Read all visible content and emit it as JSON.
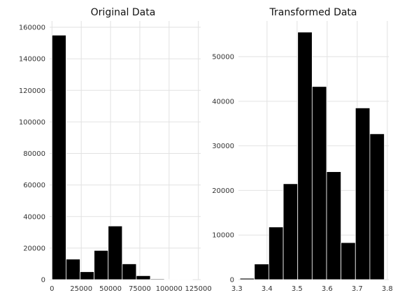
{
  "chart_data": [
    {
      "type": "bar",
      "title": "Original Data",
      "xlabel": "",
      "ylabel": "",
      "xlim": [
        -2000,
        127000
      ],
      "ylim": [
        0,
        164000
      ],
      "xticks": [
        0,
        25000,
        50000,
        75000,
        100000,
        125000
      ],
      "xtick_labels": [
        "0",
        "25000",
        "50000",
        "75000",
        "100000",
        "125000"
      ],
      "yticks": [
        0,
        20000,
        40000,
        60000,
        80000,
        100000,
        120000,
        140000,
        160000
      ],
      "ytick_labels": [
        "0",
        "20000",
        "40000",
        "60000",
        "80000",
        "100000",
        "120000",
        "140000",
        "160000"
      ],
      "grid": true,
      "color": "#000000",
      "bins": [
        {
          "x0": 0,
          "x1": 12000,
          "count": 155000
        },
        {
          "x0": 12000,
          "x1": 24000,
          "count": 13000
        },
        {
          "x0": 24000,
          "x1": 36000,
          "count": 5000
        },
        {
          "x0": 36000,
          "x1": 48000,
          "count": 18500
        },
        {
          "x0": 48000,
          "x1": 60000,
          "count": 34000
        },
        {
          "x0": 60000,
          "x1": 72000,
          "count": 10000
        },
        {
          "x0": 72000,
          "x1": 84000,
          "count": 2500
        },
        {
          "x0": 84000,
          "x1": 96000,
          "count": 500
        },
        {
          "x0": 96000,
          "x1": 108000,
          "count": 100
        },
        {
          "x0": 108000,
          "x1": 120000,
          "count": 50
        }
      ]
    },
    {
      "type": "bar",
      "title": "Transformed Data",
      "xlabel": "",
      "ylabel": "",
      "xlim": [
        3.305,
        3.805
      ],
      "ylim": [
        0,
        58000
      ],
      "xticks": [
        3.3,
        3.4,
        3.5,
        3.6,
        3.7,
        3.8
      ],
      "xtick_labels": [
        "3.3",
        "3.4",
        "3.5",
        "3.6",
        "3.7",
        "3.8"
      ],
      "yticks": [
        0,
        10000,
        20000,
        30000,
        40000,
        50000
      ],
      "ytick_labels": [
        "0",
        "10000",
        "20000",
        "30000",
        "40000",
        "50000"
      ],
      "grid": true,
      "color": "#000000",
      "bins": [
        {
          "x0": 3.31,
          "x1": 3.358,
          "count": 300
        },
        {
          "x0": 3.358,
          "x1": 3.406,
          "count": 3500
        },
        {
          "x0": 3.406,
          "x1": 3.454,
          "count": 11800
        },
        {
          "x0": 3.454,
          "x1": 3.502,
          "count": 21500
        },
        {
          "x0": 3.502,
          "x1": 3.55,
          "count": 55500
        },
        {
          "x0": 3.55,
          "x1": 3.598,
          "count": 43300
        },
        {
          "x0": 3.598,
          "x1": 3.646,
          "count": 24200
        },
        {
          "x0": 3.646,
          "x1": 3.694,
          "count": 8300
        },
        {
          "x0": 3.694,
          "x1": 3.742,
          "count": 38500
        },
        {
          "x0": 3.742,
          "x1": 3.79,
          "count": 32700
        }
      ]
    }
  ]
}
